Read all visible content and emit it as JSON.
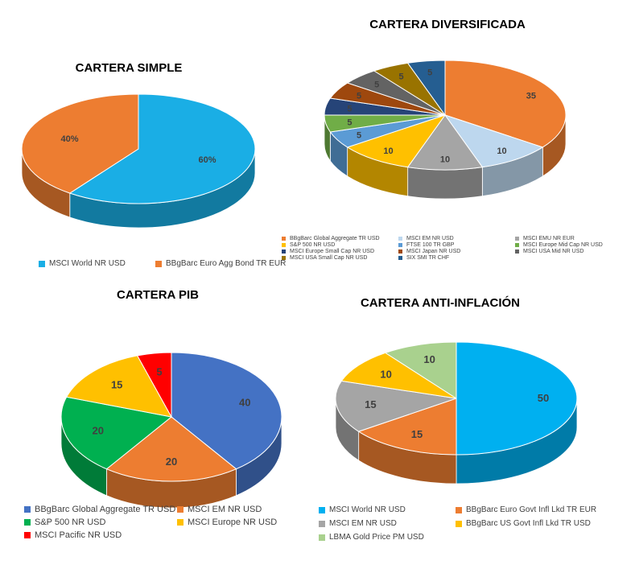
{
  "chart_data": [
    {
      "type": "pie",
      "title": "CARTERA SIMPLE",
      "labels": [
        "MSCI World NR USD",
        "BBgBarc Euro Agg Bond TR EUR"
      ],
      "values": [
        60,
        40
      ],
      "data_labels": [
        "60%",
        "40%"
      ],
      "colors": [
        "#1aaee5",
        "#ed7d31"
      ]
    },
    {
      "type": "pie",
      "title": "CARTERA DIVERSIFICADA",
      "labels": [
        "BBgBarc Global Aggregate TR USD",
        "MSCI EM NR USD",
        "MSCI EMU NR EUR",
        "S&P 500 NR USD",
        "FTSE 100 TR GBP",
        "MSCI Europe Mid Cap NR USD",
        "MSCI Europe Small Cap NR USD",
        "MSCI Japan NR USD",
        "MSCI USA Mid NR USD",
        "MSCI USA Small Cap NR USD",
        "SIX SMI TR CHF"
      ],
      "values": [
        35,
        10,
        10,
        10,
        5,
        5,
        5,
        5,
        5,
        5,
        5
      ],
      "data_labels": [
        "35",
        "10",
        "10",
        "10",
        "5",
        "5",
        "5",
        "5",
        "5",
        "5",
        "5"
      ],
      "colors": [
        "#ed7d31",
        "#bdd7ee",
        "#a5a5a5",
        "#ffc000",
        "#5b9bd5",
        "#70ad47",
        "#264478",
        "#9e480e",
        "#636363",
        "#997300",
        "#255e91"
      ]
    },
    {
      "type": "pie",
      "title": "CARTERA PIB",
      "labels": [
        "BBgBarc Global Aggregate TR USD",
        "MSCI EM NR USD",
        "S&P 500 NR USD",
        "MSCI Europe NR USD",
        "MSCI Pacific NR USD"
      ],
      "values": [
        40,
        20,
        20,
        15,
        5
      ],
      "data_labels": [
        "40",
        "20",
        "20",
        "15",
        "5"
      ],
      "colors": [
        "#4472c4",
        "#ed7d31",
        "#00b050",
        "#ffc000",
        "#ff0000"
      ]
    },
    {
      "type": "pie",
      "title": "CARTERA ANTI-INFLACIÓN",
      "labels": [
        "MSCI World NR USD",
        "BBgBarc Euro Govt Infl Lkd TR EUR",
        "MSCI EM NR USD",
        "BBgBarc US Govt Infl Lkd TR USD",
        "LBMA Gold Price PM USD"
      ],
      "values": [
        50,
        15,
        15,
        10,
        10
      ],
      "data_labels": [
        "50",
        "15",
        "15",
        "10",
        "10"
      ],
      "colors": [
        "#00b0f0",
        "#ed7d31",
        "#a5a5a5",
        "#ffc000",
        "#a9d18e"
      ]
    }
  ]
}
